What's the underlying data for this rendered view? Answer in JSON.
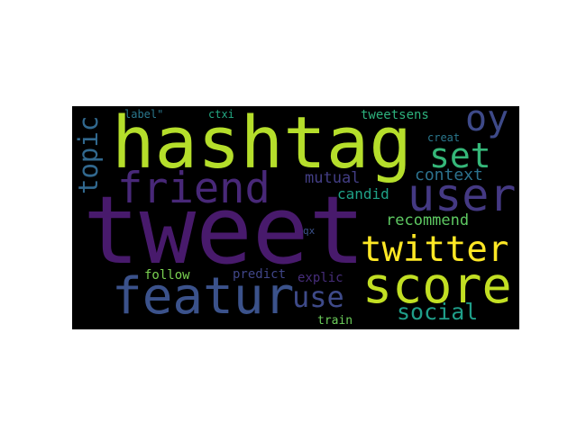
{
  "wordcloud": {
    "background": "#000000",
    "words": [
      {
        "id": "tweet",
        "text": "tweet",
        "color": "#481a6c"
      },
      {
        "id": "hashtag",
        "text": "hashtag",
        "color": "#b5de2b"
      },
      {
        "id": "featur",
        "text": "featur",
        "color": "#3b528b"
      },
      {
        "id": "score",
        "text": "score",
        "color": "#c2df23"
      },
      {
        "id": "friend",
        "text": "friend",
        "color": "#482878"
      },
      {
        "id": "user",
        "text": "user",
        "color": "#443983"
      },
      {
        "id": "twitter",
        "text": "twitter",
        "color": "#fde725"
      },
      {
        "id": "oy",
        "text": "oy",
        "color": "#3e4a89"
      },
      {
        "id": "set",
        "text": "set",
        "color": "#35b779"
      },
      {
        "id": "topic",
        "text": "topic",
        "color": "#31688e"
      },
      {
        "id": "use",
        "text": "use",
        "color": "#3e4a89"
      },
      {
        "id": "social",
        "text": "social",
        "color": "#1f9e89"
      },
      {
        "id": "context",
        "text": "context",
        "color": "#2c728e"
      },
      {
        "id": "mutual",
        "text": "mutual",
        "color": "#433e85"
      },
      {
        "id": "candid",
        "text": "candid",
        "color": "#1fa187"
      },
      {
        "id": "recommend",
        "text": "recommend",
        "color": "#5ec962"
      },
      {
        "id": "tweetsens",
        "text": "tweetsens",
        "color": "#2db27d"
      },
      {
        "id": "follow",
        "text": "follow",
        "color": "#7ad151"
      },
      {
        "id": "predict",
        "text": "predict",
        "color": "#404688"
      },
      {
        "id": "explic",
        "text": "explic",
        "color": "#472d7b"
      },
      {
        "id": "train",
        "text": "train",
        "color": "#6ccd5a"
      },
      {
        "id": "label",
        "text": "label\"",
        "color": "#2a788e"
      },
      {
        "id": "ctxi",
        "text": "ctxi",
        "color": "#23a983"
      },
      {
        "id": "creat",
        "text": "creat",
        "color": "#2a788e"
      },
      {
        "id": "qx",
        "text": "qx",
        "color": "#3b528b"
      }
    ]
  }
}
